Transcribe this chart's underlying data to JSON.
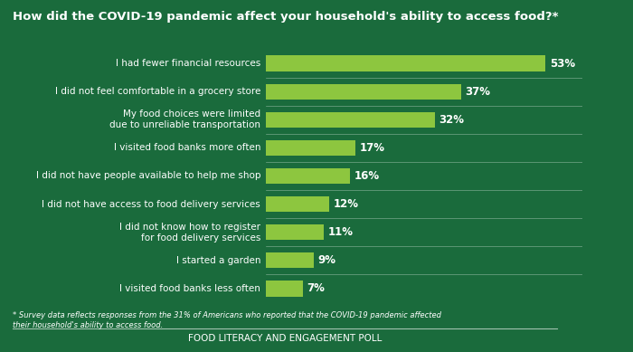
{
  "title": "How did the COVID-19 pandemic affect your household's ability to access food?*",
  "categories": [
    "I had fewer financial resources",
    "I did not feel comfortable in a grocery store",
    "My food choices were limited\ndue to unreliable transportation",
    "I visited food banks more often",
    "I did not have people available to help me shop",
    "I did not have access to food delivery services",
    "I did not know how to register\nfor food delivery services",
    "I started a garden",
    "I visited food banks less often"
  ],
  "values": [
    53,
    37,
    32,
    17,
    16,
    12,
    11,
    9,
    7
  ],
  "bar_color": "#8DC63F",
  "bg_color": "#1a6b3c",
  "text_color": "#ffffff",
  "title_color": "#ffffff",
  "bar_max": 60,
  "footnote": "* Survey data reflects responses from the 31% of Americans who reported that the COVID-19 pandemic affected\ntheir household's ability to access food.",
  "footer": "FOOD LITERACY AND ENGAGEMENT POLL"
}
